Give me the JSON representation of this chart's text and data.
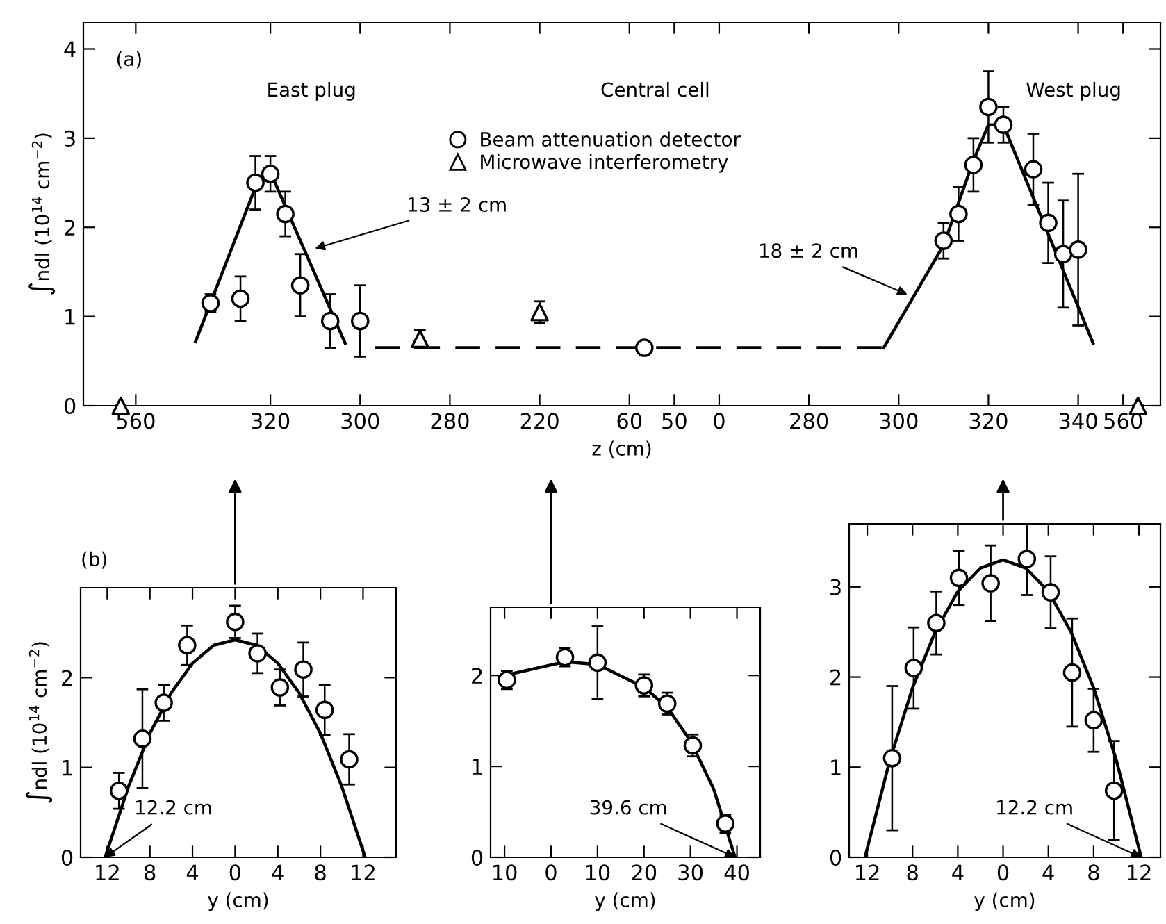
{
  "chart_data": [
    {
      "type": "scatter",
      "ylabel": "∫ndl (10$^{14}$ cm$^{−2}$)",
      "xlabel": "z (cm)",
      "ylim": [
        0,
        4.3
      ],
      "yticks": [
        0,
        1,
        2,
        3,
        4
      ],
      "legend": "top",
      "grid": false,
      "categories": [
        null,
        null,
        null,
        "560",
        null,
        null,
        null,
        null,
        null,
        null,
        null,
        null,
        "320",
        null,
        null,
        null,
        null,
        null,
        "300",
        null,
        null,
        null,
        null,
        null,
        "280",
        null,
        null,
        null,
        null,
        null,
        "220",
        null,
        null,
        null,
        null,
        null,
        "60",
        null,
        null,
        "50",
        null,
        null,
        "0",
        null,
        null,
        null,
        null,
        null,
        "280",
        null,
        null,
        null,
        null,
        null,
        "300",
        null,
        null,
        null,
        null,
        null,
        "320",
        null,
        null,
        null,
        null,
        null,
        "340",
        null,
        null,
        "560",
        null,
        null
      ],
      "annotations": [
        "(a)",
        "East plug",
        "Central cell",
        "West plug",
        "13 ± 2 cm",
        "18 ± 2 cm"
      ],
      "series": [
        {
          "name": "Beam attenuation detector",
          "color": "#000000",
          "marker": "circle",
          "values": [
            null,
            null,
            null,
            null,
            null,
            null,
            null,
            null,
            1.15,
            null,
            1.2,
            2.5,
            2.6,
            2.15,
            1.35,
            null,
            0.95,
            null,
            0.95,
            null,
            null,
            null,
            null,
            null,
            null,
            null,
            null,
            null,
            null,
            null,
            null,
            null,
            null,
            null,
            null,
            null,
            null,
            0.65,
            null,
            null,
            null,
            null,
            null,
            null,
            null,
            null,
            null,
            null,
            null,
            null,
            null,
            null,
            null,
            null,
            null,
            null,
            null,
            1.85,
            2.15,
            2.7,
            3.35,
            3.15,
            null,
            2.65,
            2.05,
            1.7,
            1.75,
            null,
            null,
            null,
            null,
            null
          ],
          "errors": [
            null,
            null,
            null,
            null,
            null,
            null,
            null,
            null,
            0.1,
            null,
            0.25,
            0.3,
            0.2,
            0.25,
            0.35,
            null,
            0.3,
            null,
            0.4,
            null,
            null,
            null,
            null,
            null,
            null,
            null,
            null,
            null,
            null,
            null,
            null,
            null,
            null,
            null,
            null,
            null,
            null,
            0.05,
            null,
            null,
            null,
            null,
            null,
            null,
            null,
            null,
            null,
            null,
            null,
            null,
            null,
            null,
            null,
            null,
            null,
            null,
            null,
            0.2,
            0.3,
            0.3,
            0.4,
            0.2,
            null,
            0.4,
            0.45,
            0.6,
            0.85,
            null,
            null,
            null,
            null,
            null
          ]
        },
        {
          "name": "Microwave interferometry",
          "color": "#000000",
          "marker": "triangle",
          "values": [
            null,
            null,
            0,
            null,
            null,
            null,
            null,
            null,
            null,
            null,
            null,
            null,
            null,
            null,
            null,
            null,
            null,
            null,
            null,
            null,
            null,
            null,
            0.75,
            null,
            null,
            null,
            null,
            null,
            null,
            null,
            1.05,
            null,
            null,
            null,
            null,
            null,
            null,
            null,
            null,
            null,
            null,
            null,
            null,
            null,
            null,
            null,
            null,
            null,
            null,
            null,
            null,
            null,
            null,
            null,
            null,
            null,
            null,
            null,
            null,
            null,
            null,
            null,
            null,
            null,
            null,
            null,
            null,
            null,
            null,
            null,
            0,
            null
          ],
          "errors": [
            null,
            null,
            null,
            null,
            null,
            null,
            null,
            null,
            null,
            null,
            null,
            null,
            null,
            null,
            null,
            null,
            null,
            null,
            null,
            null,
            null,
            null,
            0.1,
            null,
            null,
            null,
            null,
            null,
            null,
            null,
            0.12,
            null,
            null,
            null,
            null,
            null,
            null,
            null,
            null,
            null,
            null,
            null,
            null,
            null,
            null,
            null,
            null,
            null,
            null,
            null,
            null,
            null,
            null,
            null,
            null,
            null,
            null,
            null,
            null,
            null,
            null,
            null,
            null,
            null,
            null,
            null,
            null,
            null,
            null,
            null,
            null,
            null
          ]
        },
        {
          "type": "line",
          "color": "#000000",
          "marker": "none",
          "line_style": "solid",
          "values": [
            null,
            null,
            null,
            null,
            null,
            null,
            null,
            0.72,
            null,
            null,
            null,
            2.45,
            2.62,
            null,
            null,
            null,
            null,
            0.7,
            null,
            null,
            null,
            null,
            null,
            null,
            null,
            null,
            null,
            null,
            null,
            null,
            null,
            null,
            null,
            null,
            null,
            null,
            null,
            null,
            null,
            null,
            null,
            null,
            null,
            null,
            null,
            null,
            null,
            null,
            null,
            null,
            null,
            null,
            null,
            null,
            null,
            null,
            null,
            null,
            null,
            null,
            null,
            null,
            null,
            null,
            null,
            null,
            null,
            null,
            null,
            null,
            null,
            null
          ]
        },
        {
          "type": "line",
          "color": "#000000",
          "marker": "none",
          "line_style": "dashed",
          "values": [
            null,
            null,
            null,
            null,
            null,
            null,
            null,
            null,
            null,
            null,
            null,
            null,
            null,
            null,
            null,
            null,
            null,
            null,
            null,
            0.65,
            null,
            null,
            null,
            null,
            null,
            null,
            null,
            null,
            null,
            null,
            null,
            null,
            null,
            null,
            null,
            null,
            null,
            null,
            null,
            null,
            null,
            null,
            null,
            null,
            null,
            null,
            null,
            null,
            null,
            null,
            null,
            null,
            null,
            0.65,
            null,
            null,
            null,
            null,
            null,
            null,
            null,
            null,
            null,
            null,
            null,
            null,
            null,
            null,
            null,
            null,
            null,
            null
          ]
        },
        {
          "type": "line",
          "color": "#000000",
          "marker": "none",
          "line_style": "solid",
          "values": [
            null,
            null,
            null,
            null,
            null,
            null,
            null,
            null,
            null,
            null,
            null,
            null,
            null,
            null,
            null,
            null,
            null,
            null,
            null,
            null,
            null,
            null,
            null,
            null,
            null,
            null,
            null,
            null,
            null,
            null,
            null,
            null,
            null,
            null,
            null,
            null,
            null,
            null,
            null,
            null,
            null,
            null,
            null,
            null,
            null,
            null,
            null,
            null,
            null,
            null,
            null,
            null,
            null,
            0.65,
            null,
            null,
            null,
            1.8,
            null,
            2.75,
            3.15,
            3.15,
            null,
            null,
            null,
            null,
            null,
            0.7,
            null,
            null,
            null,
            null
          ]
        }
      ]
    },
    {
      "type": "scatter",
      "ylabel": "∫ndl (10$^{14}$ cm$^{−2}$)",
      "xlabel": "y (cm)",
      "xlim": [
        -14.5,
        15.1
      ],
      "ylim": [
        0,
        3.0
      ],
      "xticks": [
        {
          "value": -12,
          "label": "12"
        },
        {
          "value": -8,
          "label": "8"
        },
        {
          "value": -4,
          "label": "4"
        },
        0,
        4,
        8,
        12
      ],
      "yticks": [
        0,
        1,
        2
      ],
      "grid": false,
      "annotations": [
        "(b)",
        {
          "text": "12.2 cm",
          "x": -12.2,
          "y": 0
        }
      ],
      "series": [
        {
          "color": "#000000",
          "marker": "circle",
          "x": [
            -10.9,
            -8.7,
            -6.7,
            -4.5,
            0,
            2.1,
            4.2,
            6.4,
            8.4,
            10.7
          ],
          "values": [
            0.74,
            1.32,
            1.72,
            2.36,
            2.62,
            2.27,
            1.89,
            2.09,
            1.64,
            1.09
          ],
          "errors": [
            0.2,
            0.55,
            0.2,
            0.22,
            0.18,
            0.22,
            0.2,
            0.3,
            0.28,
            0.28
          ]
        },
        {
          "type": "line",
          "color": "#000000",
          "marker": "none",
          "line_style": "solid",
          "x": [
            -12.2,
            -10,
            -8,
            -6,
            -4,
            -2,
            0,
            2,
            4,
            6,
            8,
            10,
            12.2
          ],
          "values": [
            0,
            0.79,
            1.38,
            1.83,
            2.16,
            2.36,
            2.42,
            2.36,
            2.16,
            1.83,
            1.38,
            0.79,
            0
          ]
        }
      ]
    },
    {
      "type": "scatter",
      "xlabel": "y (cm)",
      "xlim": [
        -13,
        45
      ],
      "ylim": [
        0,
        2.75
      ],
      "xticks": [
        {
          "value": -10,
          "label": "10"
        },
        0,
        10,
        20,
        30,
        40
      ],
      "yticks": [
        0,
        1,
        2
      ],
      "grid": false,
      "annotations": [
        {
          "text": "39.6 cm",
          "x": 39.6,
          "y": 0
        }
      ],
      "series": [
        {
          "color": "#000000",
          "marker": "circle",
          "x": [
            -9.5,
            3,
            10,
            20,
            25,
            30.5,
            37.5
          ],
          "values": [
            1.95,
            2.2,
            2.14,
            1.89,
            1.69,
            1.23,
            0.37
          ],
          "errors": [
            0.1,
            0.1,
            0.4,
            0.12,
            0.12,
            0.12,
            0.1
          ]
        },
        {
          "type": "line",
          "color": "#000000",
          "marker": "none",
          "line_style": "solid",
          "x": [
            -10,
            3,
            10,
            20,
            25,
            30,
            35,
            39.6
          ],
          "values": [
            2.0,
            2.15,
            2.12,
            1.87,
            1.65,
            1.28,
            0.75,
            0
          ]
        }
      ]
    },
    {
      "type": "scatter",
      "xlabel": "y (cm)",
      "xlim": [
        -13.6,
        13.9
      ],
      "ylim": [
        0,
        3.7
      ],
      "xticks": [
        {
          "value": -12,
          "label": "12"
        },
        {
          "value": -8,
          "label": "8"
        },
        {
          "value": -4,
          "label": "4"
        },
        0,
        4,
        8,
        12
      ],
      "yticks": [
        0,
        1,
        2,
        3
      ],
      "grid": false,
      "annotations": [
        {
          "text": "12.2 cm",
          "x": 12.2,
          "y": 0
        }
      ],
      "series": [
        {
          "color": "#000000",
          "marker": "circle",
          "x": [
            -9.8,
            -7.9,
            -5.9,
            -3.9,
            -1.1,
            2.1,
            4.2,
            6.1,
            8.0,
            9.8
          ],
          "values": [
            1.1,
            2.1,
            2.6,
            3.1,
            3.04,
            3.31,
            2.94,
            2.05,
            1.52,
            0.74
          ],
          "errors": [
            0.8,
            0.45,
            0.35,
            0.3,
            0.42,
            0.4,
            0.4,
            0.6,
            0.35,
            0.55
          ]
        },
        {
          "type": "line",
          "color": "#000000",
          "marker": "none",
          "line_style": "solid",
          "x": [
            -12.2,
            -10,
            -8,
            -6,
            -4,
            -2,
            0,
            2,
            4,
            6,
            8,
            10,
            12.2
          ],
          "values": [
            0,
            1.08,
            1.88,
            2.5,
            2.95,
            3.21,
            3.3,
            3.21,
            2.95,
            2.5,
            1.88,
            1.08,
            0
          ]
        }
      ]
    }
  ]
}
